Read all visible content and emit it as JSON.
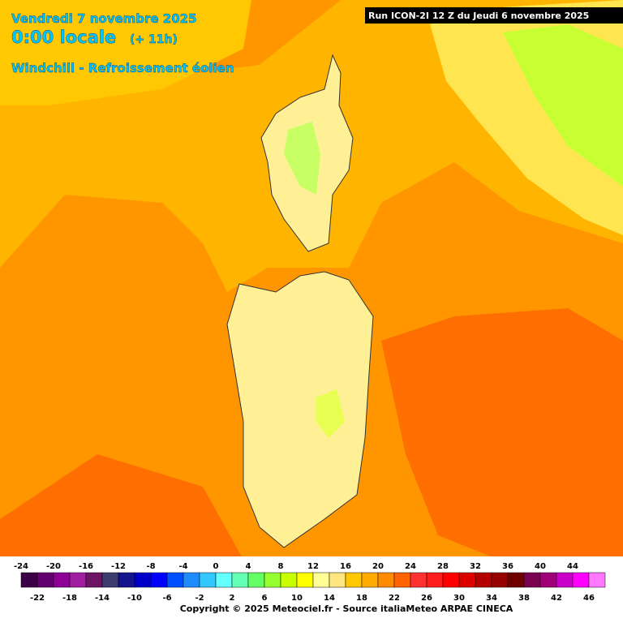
{
  "header": {
    "date": "Vendredi 7 novembre 2025",
    "time": "0:00 locale",
    "offset": "(+ 11h)",
    "variable": "Windchill - Refroissement éolien",
    "run": "Run ICON-2I 12 Z du Jeudi 6 novembre 2025"
  },
  "legend": {
    "labels_top": [
      -24,
      -20,
      -16,
      -12,
      -8,
      -4,
      0,
      4,
      8,
      12,
      16,
      20,
      24,
      28,
      32,
      36,
      40,
      44
    ],
    "labels_bottom": [
      -22,
      -18,
      -14,
      -10,
      -6,
      -2,
      2,
      6,
      10,
      14,
      18,
      22,
      26,
      30,
      34,
      38,
      42,
      46
    ]
  },
  "footer": {
    "copyright": "Copyright © 2025 Meteociel.fr - Source italiaMeteo ARPAE CINECA"
  }
}
